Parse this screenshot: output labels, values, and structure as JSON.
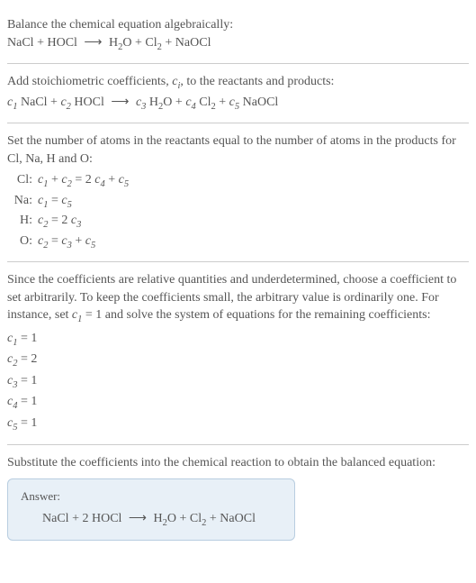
{
  "colors": {
    "text": "#555555",
    "divider": "#cccccc",
    "answer_bg": "#e8f0f7",
    "answer_border": "#b8cde0",
    "background": "#ffffff"
  },
  "intro": {
    "line1": "Balance the chemical equation algebraically:",
    "eq_lhs1": "NaCl",
    "plus": "+",
    "eq_lhs2": "HOCl",
    "arrow": "⟶",
    "eq_rhs1": "H",
    "eq_rhs1_sub": "2",
    "eq_rhs1b": "O",
    "eq_rhs2": "Cl",
    "eq_rhs2_sub": "2",
    "eq_rhs3": "NaOCl"
  },
  "stoich": {
    "text_a": "Add stoichiometric coefficients, ",
    "ci": "c",
    "ci_sub": "i",
    "text_b": ", to the reactants and products:",
    "c1": "c",
    "c1_sub": "1",
    "sp1": " NaCl",
    "c2": "c",
    "c2_sub": "2",
    "sp2": " HOCl",
    "c3": "c",
    "c3_sub": "3",
    "sp3a": " H",
    "sp3a_sub": "2",
    "sp3b": "O",
    "c4": "c",
    "c4_sub": "4",
    "sp4a": " Cl",
    "sp4a_sub": "2",
    "c5": "c",
    "c5_sub": "5",
    "sp5": " NaOCl"
  },
  "atoms": {
    "intro": "Set the number of atoms in the reactants equal to the number of atoms in the products for Cl, Na, H and O:",
    "rows": [
      {
        "label": "Cl:",
        "lhs_a": "c",
        "lhs_a_sub": "1",
        "lhs_b": "c",
        "lhs_b_sub": "2",
        "eq": "=",
        "rhs_a_coef": "2 ",
        "rhs_a": "c",
        "rhs_a_sub": "4",
        "rhs_b": "c",
        "rhs_b_sub": "5"
      },
      {
        "label": "Na:",
        "lhs_a": "c",
        "lhs_a_sub": "1",
        "eq": "=",
        "rhs_a": "c",
        "rhs_a_sub": "5"
      },
      {
        "label": "H:",
        "lhs_a": "c",
        "lhs_a_sub": "2",
        "eq": "=",
        "rhs_a_coef": "2 ",
        "rhs_a": "c",
        "rhs_a_sub": "3"
      },
      {
        "label": "O:",
        "lhs_a": "c",
        "lhs_a_sub": "2",
        "eq": "=",
        "rhs_a": "c",
        "rhs_a_sub": "3",
        "rhs_b": "c",
        "rhs_b_sub": "5"
      }
    ]
  },
  "choose": {
    "text_a": "Since the coefficients are relative quantities and underdetermined, choose a coefficient to set arbitrarily. To keep the coefficients small, the arbitrary value is ordinarily one. For instance, set ",
    "c1": "c",
    "c1_sub": "1",
    "text_b": " = 1 and solve the system of equations for the remaining coefficients:",
    "coefs": [
      {
        "c": "c",
        "sub": "1",
        "val": " = 1"
      },
      {
        "c": "c",
        "sub": "2",
        "val": " = 2"
      },
      {
        "c": "c",
        "sub": "3",
        "val": " = 1"
      },
      {
        "c": "c",
        "sub": "4",
        "val": " = 1"
      },
      {
        "c": "c",
        "sub": "5",
        "val": " = 1"
      }
    ]
  },
  "subst": {
    "text": "Substitute the coefficients into the chemical reaction to obtain the balanced equation:"
  },
  "answer": {
    "label": "Answer:",
    "lhs1": "NaCl",
    "plus": "+",
    "lhs2_coef": "2 ",
    "lhs2": "HOCl",
    "arrow": "⟶",
    "rhs1a": "H",
    "rhs1a_sub": "2",
    "rhs1b": "O",
    "rhs2a": "Cl",
    "rhs2a_sub": "2",
    "rhs3": "NaOCl"
  }
}
